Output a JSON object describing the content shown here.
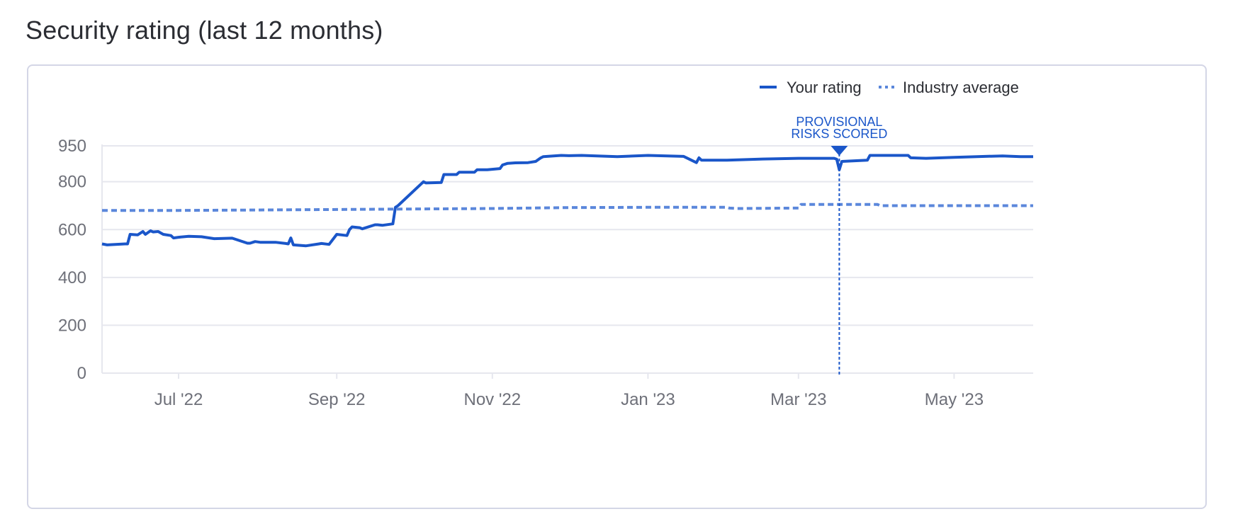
{
  "page": {
    "title": "Security rating (last 12 months)"
  },
  "colors": {
    "your_rating": "#1a56c9",
    "industry_average": "#5b87db",
    "grid": "#e6e7ee",
    "axis_text": "#6e7079",
    "card_border": "#d4d6e6"
  },
  "chart_data": {
    "type": "line",
    "title": "Security rating (last 12 months)",
    "xlabel": "",
    "ylabel": "",
    "ylim": [
      0,
      950
    ],
    "yticks": [
      0,
      200,
      400,
      600,
      800,
      950
    ],
    "xlim": [
      "2022-06-01",
      "2023-06-01"
    ],
    "xticks": [
      {
        "date": "2022-07-01",
        "label": "Jul '22"
      },
      {
        "date": "2022-09-01",
        "label": "Sep '22"
      },
      {
        "date": "2022-11-01",
        "label": "Nov '22"
      },
      {
        "date": "2023-01-01",
        "label": "Jan '23"
      },
      {
        "date": "2023-03-01",
        "label": "Mar '23"
      },
      {
        "date": "2023-05-01",
        "label": "May '23"
      }
    ],
    "grid": true,
    "legend_position": "top-right",
    "annotations": [
      {
        "date": "2023-03-17",
        "label": [
          "PROVISIONAL",
          "RISKS SCORED"
        ]
      }
    ],
    "series": [
      {
        "name": "Your rating",
        "style": "solid",
        "color_key": "your_rating",
        "x": [
          "2022-06-01",
          "2022-06-03",
          "2022-06-10",
          "2022-06-11",
          "2022-06-12",
          "2022-06-15",
          "2022-06-17",
          "2022-06-18",
          "2022-06-20",
          "2022-06-21",
          "2022-06-23",
          "2022-06-25",
          "2022-06-28",
          "2022-06-29",
          "2022-07-01",
          "2022-07-05",
          "2022-07-10",
          "2022-07-15",
          "2022-07-22",
          "2022-07-28",
          "2022-07-29",
          "2022-07-31",
          "2022-08-02",
          "2022-08-08",
          "2022-08-12",
          "2022-08-13",
          "2022-08-14",
          "2022-08-15",
          "2022-08-20",
          "2022-08-25",
          "2022-08-26",
          "2022-08-29",
          "2022-09-01",
          "2022-09-05",
          "2022-09-06",
          "2022-09-07",
          "2022-09-10",
          "2022-09-11",
          "2022-09-16",
          "2022-09-17",
          "2022-09-19",
          "2022-09-23",
          "2022-09-24",
          "2022-09-25",
          "2022-10-05",
          "2022-10-06",
          "2022-10-12",
          "2022-10-13",
          "2022-10-18",
          "2022-10-19",
          "2022-10-25",
          "2022-10-26",
          "2022-10-30",
          "2022-11-04",
          "2022-11-05",
          "2022-11-07",
          "2022-11-10",
          "2022-11-15",
          "2022-11-18",
          "2022-11-20",
          "2022-11-21",
          "2022-11-28",
          "2022-12-01",
          "2022-12-06",
          "2022-12-20",
          "2023-01-01",
          "2023-01-15",
          "2023-01-20",
          "2023-01-21",
          "2023-01-22",
          "2023-02-01",
          "2023-02-15",
          "2023-03-01",
          "2023-03-15",
          "2023-03-16",
          "2023-03-17",
          "2023-03-18",
          "2023-03-28",
          "2023-03-29",
          "2023-04-13",
          "2023-04-14",
          "2023-04-20",
          "2023-05-01",
          "2023-05-10",
          "2023-05-20",
          "2023-05-27",
          "2023-06-01"
        ],
        "y": [
          540,
          536,
          540,
          540,
          580,
          578,
          592,
          580,
          595,
          590,
          592,
          580,
          575,
          565,
          568,
          572,
          570,
          562,
          564,
          543,
          543,
          550,
          547,
          547,
          542,
          540,
          565,
          536,
          532,
          540,
          542,
          538,
          580,
          575,
          600,
          611,
          608,
          603,
          620,
          620,
          618,
          624,
          693,
          700,
          800,
          795,
          797,
          830,
          830,
          840,
          840,
          850,
          850,
          855,
          870,
          877,
          879,
          880,
          885,
          900,
          905,
          910,
          909,
          910,
          905,
          910,
          906,
          880,
          900,
          890,
          890,
          895,
          898,
          898,
          894,
          850,
          885,
          890,
          910,
          910,
          900,
          898,
          902,
          905,
          908,
          905,
          905
        ]
      },
      {
        "name": "Industry average",
        "style": "dotted",
        "color_key": "industry_average",
        "x": [
          "2022-06-01",
          "2022-07-01",
          "2022-08-01",
          "2022-09-01",
          "2022-10-01",
          "2022-11-01",
          "2022-12-01",
          "2023-01-01",
          "2023-02-01",
          "2023-02-02",
          "2023-02-05",
          "2023-02-28",
          "2023-03-01",
          "2023-03-02",
          "2023-03-15",
          "2023-04-01",
          "2023-04-02",
          "2023-05-01",
          "2023-06-01"
        ],
        "y": [
          680,
          680,
          682,
          684,
          686,
          688,
          692,
          693,
          693,
          690,
          688,
          690,
          690,
          705,
          705,
          705,
          700,
          700,
          700
        ]
      }
    ]
  }
}
